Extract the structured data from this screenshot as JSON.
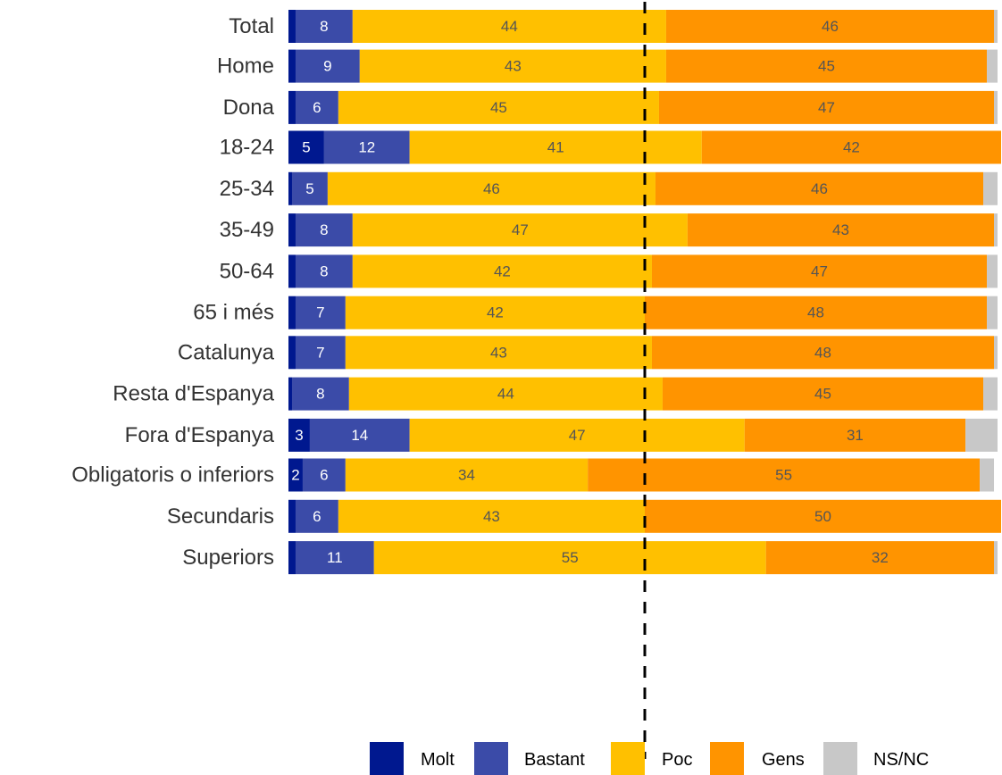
{
  "chart_data": {
    "type": "bar",
    "orientation": "horizontal",
    "stacked": true,
    "xlim": [
      0,
      100
    ],
    "reference_line": 50,
    "legend_position": "bottom",
    "categories": [
      "Total",
      "Home",
      "Dona",
      "18-24",
      "25-34",
      "35-49",
      "50-64",
      "65 i més",
      "Catalunya",
      "Resta d'Espanya",
      "Fora d'Espanya",
      "Obligatoris o inferiors",
      "Secundaris",
      "Superiors"
    ],
    "groups": [
      [
        0
      ],
      [
        1,
        2
      ],
      [
        3,
        4,
        5,
        6,
        7
      ],
      [
        8,
        9,
        10
      ],
      [
        11,
        12,
        13
      ]
    ],
    "series": [
      {
        "name": "Molt",
        "color": "#00188f",
        "label_color": "#ffffff",
        "values": [
          1,
          1,
          1,
          5,
          0.5,
          1,
          1,
          1,
          1,
          0.5,
          3,
          2,
          1,
          1
        ]
      },
      {
        "name": "Bastant",
        "color": "#3b4ba8",
        "label_color": "#ffffff",
        "values": [
          8,
          9,
          6,
          12,
          5,
          8,
          8,
          7,
          7,
          8,
          14,
          6,
          6,
          11
        ]
      },
      {
        "name": "Poc",
        "color": "#ffc000",
        "label_color": "#555555",
        "values": [
          44,
          43,
          45,
          41,
          46,
          47,
          42,
          42,
          43,
          44,
          47,
          34,
          43,
          55
        ]
      },
      {
        "name": "Gens",
        "color": "#ff9400",
        "label_color": "#555555",
        "values": [
          46,
          45,
          47,
          42,
          46,
          43,
          47,
          48,
          48,
          45,
          31,
          55,
          50,
          32
        ]
      },
      {
        "name": "NS/NC",
        "color": "#c8c8c8",
        "label_color": "#555555",
        "values": [
          0.5,
          1.5,
          0.5,
          0,
          2,
          0.5,
          1.5,
          1.5,
          0.5,
          2,
          4.5,
          2,
          0,
          0.5
        ]
      }
    ],
    "data_labels": [
      [
        "",
        "8",
        "44",
        "46",
        ""
      ],
      [
        "",
        "9",
        "43",
        "45",
        ""
      ],
      [
        "",
        "6",
        "45",
        "47",
        ""
      ],
      [
        "5",
        "12",
        "41",
        "42",
        ""
      ],
      [
        "",
        "5",
        "46",
        "46",
        ""
      ],
      [
        "",
        "8",
        "47",
        "43",
        ""
      ],
      [
        "",
        "8",
        "42",
        "47",
        ""
      ],
      [
        "",
        "7",
        "42",
        "48",
        ""
      ],
      [
        "",
        "7",
        "43",
        "48",
        ""
      ],
      [
        "",
        "8",
        "44",
        "45",
        ""
      ],
      [
        "3",
        "14",
        "47",
        "31",
        ""
      ],
      [
        "2",
        "6",
        "34",
        "55",
        ""
      ],
      [
        "",
        "6",
        "43",
        "50",
        ""
      ],
      [
        "",
        "11",
        "55",
        "32",
        ""
      ]
    ]
  }
}
